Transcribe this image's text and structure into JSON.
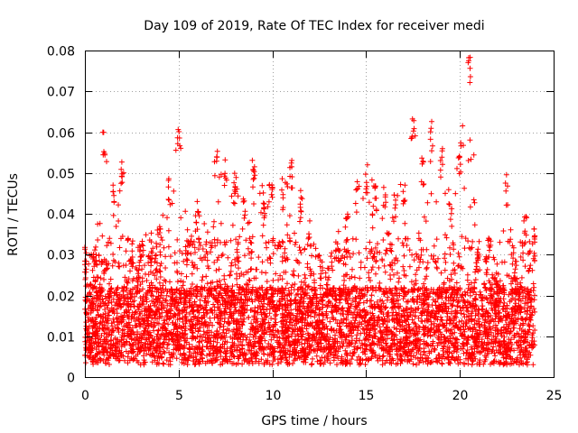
{
  "chart_data": {
    "type": "scatter",
    "title": "Day 109 of 2019, Rate Of TEC Index for receiver medi",
    "xlabel": "GPS time / hours",
    "ylabel": "ROTI / TECUs",
    "xlim": [
      0,
      25
    ],
    "ylim": [
      0,
      0.08
    ],
    "x_ticks": [
      0,
      5,
      10,
      15,
      20,
      25
    ],
    "x_tick_labels": [
      "0",
      "5",
      "10",
      "15",
      "20",
      "25"
    ],
    "y_ticks": [
      0,
      0.01,
      0.02,
      0.03,
      0.04,
      0.05,
      0.06,
      0.07,
      0.08
    ],
    "y_tick_labels": [
      "0",
      "0.01",
      "0.02",
      "0.03",
      "0.04",
      "0.05",
      "0.06",
      "0.07",
      "0.08"
    ],
    "grid": true,
    "marker": "+",
    "color": "#ff0000",
    "x_range": [
      0,
      24
    ],
    "baseline_y": 0.011,
    "max_y_by_hour": [
      [
        0,
        0.033
      ],
      [
        0.5,
        0.03
      ],
      [
        1,
        0.06
      ],
      [
        1.5,
        0.047
      ],
      [
        2,
        0.054
      ],
      [
        2.5,
        0.035
      ],
      [
        3,
        0.034
      ],
      [
        3.5,
        0.036
      ],
      [
        4,
        0.038
      ],
      [
        4.5,
        0.05
      ],
      [
        5,
        0.064
      ],
      [
        5.5,
        0.035
      ],
      [
        6,
        0.044
      ],
      [
        6.5,
        0.036
      ],
      [
        7,
        0.057
      ],
      [
        7.5,
        0.054
      ],
      [
        8,
        0.05
      ],
      [
        8.5,
        0.045
      ],
      [
        9,
        0.055
      ],
      [
        9.5,
        0.047
      ],
      [
        10,
        0.05
      ],
      [
        10.5,
        0.049
      ],
      [
        11,
        0.054
      ],
      [
        11.5,
        0.047
      ],
      [
        12,
        0.04
      ],
      [
        12.5,
        0.03
      ],
      [
        13,
        0.028
      ],
      [
        13.5,
        0.036
      ],
      [
        14,
        0.041
      ],
      [
        14.5,
        0.048
      ],
      [
        15,
        0.052
      ],
      [
        15.5,
        0.047
      ],
      [
        16,
        0.048
      ],
      [
        16.5,
        0.046
      ],
      [
        17,
        0.049
      ],
      [
        17.5,
        0.065
      ],
      [
        18,
        0.055
      ],
      [
        18.5,
        0.063
      ],
      [
        19,
        0.056
      ],
      [
        19.5,
        0.044
      ],
      [
        20,
        0.059
      ],
      [
        20.5,
        0.08
      ],
      [
        21,
        0.035
      ],
      [
        21.5,
        0.036
      ],
      [
        22,
        0.03
      ],
      [
        22.5,
        0.05
      ],
      [
        23,
        0.028
      ],
      [
        23.5,
        0.041
      ],
      [
        24,
        0.037
      ]
    ]
  }
}
